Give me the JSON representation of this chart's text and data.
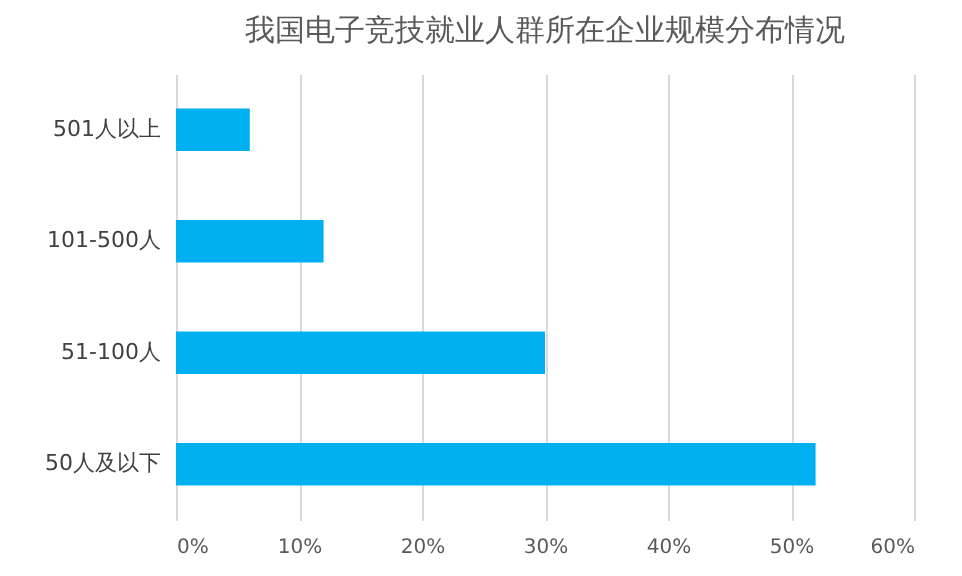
{
  "chart_data": {
    "type": "bar",
    "orientation": "horizontal",
    "title": "我国电子竞技就业人群所在企业规模分布情况",
    "categories": [
      "501人以上",
      "101-500人",
      "51-100人",
      "50人及以下"
    ],
    "values": [
      6,
      12,
      30,
      52
    ],
    "color": "#00b0f0",
    "xlim": [
      0,
      60
    ],
    "xticks": [
      {
        "value": 0,
        "label": "0%"
      },
      {
        "value": 10,
        "label": "10%"
      },
      {
        "value": 20,
        "label": "20%"
      },
      {
        "value": 30,
        "label": "30%"
      },
      {
        "value": 40,
        "label": "40%"
      },
      {
        "value": 50,
        "label": "50%"
      },
      {
        "value": 60,
        "label": "60%"
      }
    ],
    "grid": "x"
  }
}
